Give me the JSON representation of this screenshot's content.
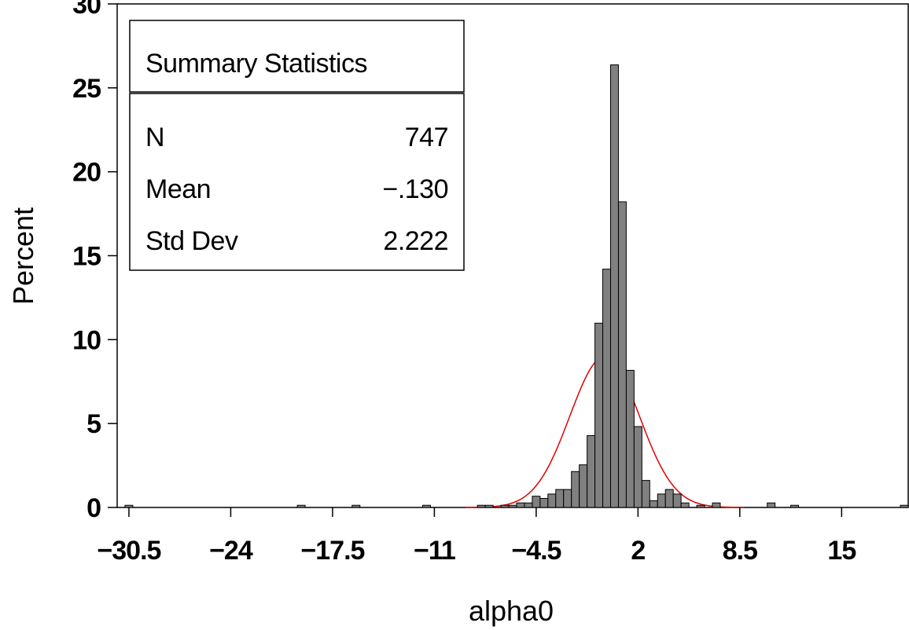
{
  "chart_data": {
    "type": "bar",
    "xlabel": "alpha0",
    "ylabel": "Percent",
    "xlim": [
      -31.25,
      19.25
    ],
    "ylim": [
      0,
      30
    ],
    "bin_width": 0.5,
    "x_ticks": [
      -30.5,
      -24,
      -17.5,
      -11,
      -4.5,
      2,
      8.5,
      15
    ],
    "x_tick_labels": [
      "−30.5",
      "−24",
      "−17.5",
      "−11",
      "−4.5",
      "2",
      "8.5",
      "15"
    ],
    "y_ticks": [
      0,
      5,
      10,
      15,
      20,
      25,
      30
    ],
    "y_tick_labels": [
      "0",
      "5",
      "10",
      "15",
      "20",
      "25",
      "30"
    ],
    "bars": [
      {
        "x": -30.5,
        "y": 0.13
      },
      {
        "x": -19.5,
        "y": 0.13
      },
      {
        "x": -16.0,
        "y": 0.13
      },
      {
        "x": -11.5,
        "y": 0.13
      },
      {
        "x": -8.0,
        "y": 0.13
      },
      {
        "x": -7.5,
        "y": 0.13
      },
      {
        "x": -6.5,
        "y": 0.13
      },
      {
        "x": -6.0,
        "y": 0.13
      },
      {
        "x": -5.5,
        "y": 0.27
      },
      {
        "x": -5.0,
        "y": 0.27
      },
      {
        "x": -4.5,
        "y": 0.67
      },
      {
        "x": -4.0,
        "y": 0.54
      },
      {
        "x": -3.5,
        "y": 0.8
      },
      {
        "x": -3.0,
        "y": 1.07
      },
      {
        "x": -2.5,
        "y": 1.07
      },
      {
        "x": -2.0,
        "y": 2.14
      },
      {
        "x": -1.5,
        "y": 2.54
      },
      {
        "x": -1.0,
        "y": 4.28
      },
      {
        "x": -0.5,
        "y": 10.98
      },
      {
        "x": 0.0,
        "y": 14.2
      },
      {
        "x": 0.5,
        "y": 26.37
      },
      {
        "x": 1.0,
        "y": 18.21
      },
      {
        "x": 1.5,
        "y": 8.17
      },
      {
        "x": 2.0,
        "y": 4.82
      },
      {
        "x": 2.5,
        "y": 1.61
      },
      {
        "x": 3.0,
        "y": 0.4
      },
      {
        "x": 3.5,
        "y": 0.8
      },
      {
        "x": 4.0,
        "y": 1.07
      },
      {
        "x": 4.5,
        "y": 0.8
      },
      {
        "x": 5.0,
        "y": 0.27
      },
      {
        "x": 6.0,
        "y": 0.13
      },
      {
        "x": 7.0,
        "y": 0.27
      },
      {
        "x": 10.5,
        "y": 0.27
      },
      {
        "x": 12.0,
        "y": 0.13
      },
      {
        "x": 19.0,
        "y": 0.13
      }
    ],
    "normal_curve": {
      "mean": -0.13,
      "std": 2.222,
      "n": 747,
      "color": "#e00000"
    },
    "bar_fill": "#808080",
    "bar_stroke": "#000000",
    "grid": false,
    "legend": "none"
  },
  "stats_box": {
    "title": "Summary Statistics",
    "rows": [
      {
        "label": "N",
        "value": "747"
      },
      {
        "label": "Mean",
        "value": "−.130"
      },
      {
        "label": "Std Dev",
        "value": "2.222"
      }
    ]
  }
}
